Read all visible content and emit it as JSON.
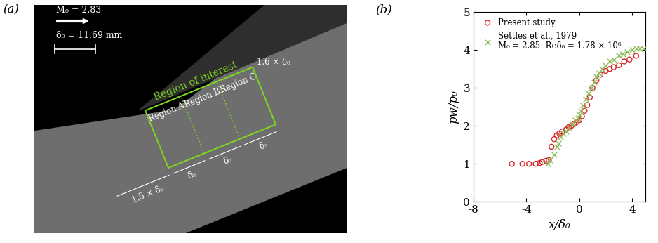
{
  "image_panel": {
    "label": "(a)",
    "mach": "M₀ = 2.83",
    "scale_bar": "δ₀ = 11.69 mm",
    "roi": "Region of interest",
    "regions": [
      "Region A",
      "Region B",
      "Region C"
    ],
    "height_label": "1.6 × δ₀",
    "upstream_label": "1.5 × δ₀",
    "region_width_label": "δ₀"
  },
  "chart_data": {
    "type": "scatter",
    "panel_label": "(b)",
    "xlabel": "x/δ₀",
    "ylabel": "pw/p₀",
    "xlim": [
      -8,
      5
    ],
    "xticks": [
      -8,
      -4,
      0,
      4
    ],
    "ylim": [
      0,
      5
    ],
    "yticks": [
      0,
      1,
      2,
      3,
      4,
      5
    ],
    "legend": "upper left",
    "series": [
      {
        "name": "Present study",
        "color": "#d62728",
        "marker": "circle",
        "x": [
          -5.1,
          -4.3,
          -3.8,
          -3.3,
          -3.0,
          -2.8,
          -2.5,
          -2.3,
          -2.1,
          -1.9,
          -1.7,
          -1.5,
          -1.3,
          -1.0,
          -0.8,
          -0.6,
          -0.4,
          -0.2,
          0.0,
          0.2,
          0.4,
          0.6,
          0.8,
          1.0,
          1.3,
          1.6,
          2.0,
          2.3,
          2.6,
          3.0,
          3.4,
          3.8,
          4.3
        ],
        "values": [
          1.0,
          1.0,
          1.0,
          1.0,
          1.02,
          1.05,
          1.08,
          1.1,
          1.45,
          1.65,
          1.75,
          1.8,
          1.85,
          1.9,
          1.97,
          2.0,
          2.05,
          2.1,
          2.15,
          2.25,
          2.4,
          2.55,
          2.75,
          3.0,
          3.2,
          3.35,
          3.45,
          3.5,
          3.55,
          3.6,
          3.7,
          3.75,
          3.85
        ]
      },
      {
        "name": "Settles et al., 1979\nM₀ = 2.85  Reδ₀ = 1.78 × 10⁶",
        "color": "#8fbc5a",
        "marker": "x",
        "x": [
          -2.4,
          -2.2,
          -1.9,
          -1.7,
          -1.6,
          -1.4,
          -1.2,
          -1.0,
          -0.8,
          -0.5,
          -0.3,
          -0.1,
          0.0,
          0.1,
          0.3,
          0.5,
          0.7,
          0.9,
          1.1,
          1.3,
          1.5,
          1.7,
          2.0,
          2.3,
          2.6,
          3.0,
          3.3,
          3.6,
          4.0,
          4.3,
          4.6,
          4.9
        ],
        "values": [
          1.0,
          1.1,
          1.25,
          1.45,
          1.55,
          1.7,
          1.8,
          1.85,
          1.95,
          2.05,
          2.15,
          2.2,
          2.3,
          2.4,
          2.55,
          2.7,
          2.85,
          3.0,
          3.15,
          3.3,
          3.4,
          3.5,
          3.6,
          3.7,
          3.75,
          3.85,
          3.9,
          3.95,
          4.0,
          4.05,
          4.05,
          4.05
        ]
      }
    ]
  }
}
